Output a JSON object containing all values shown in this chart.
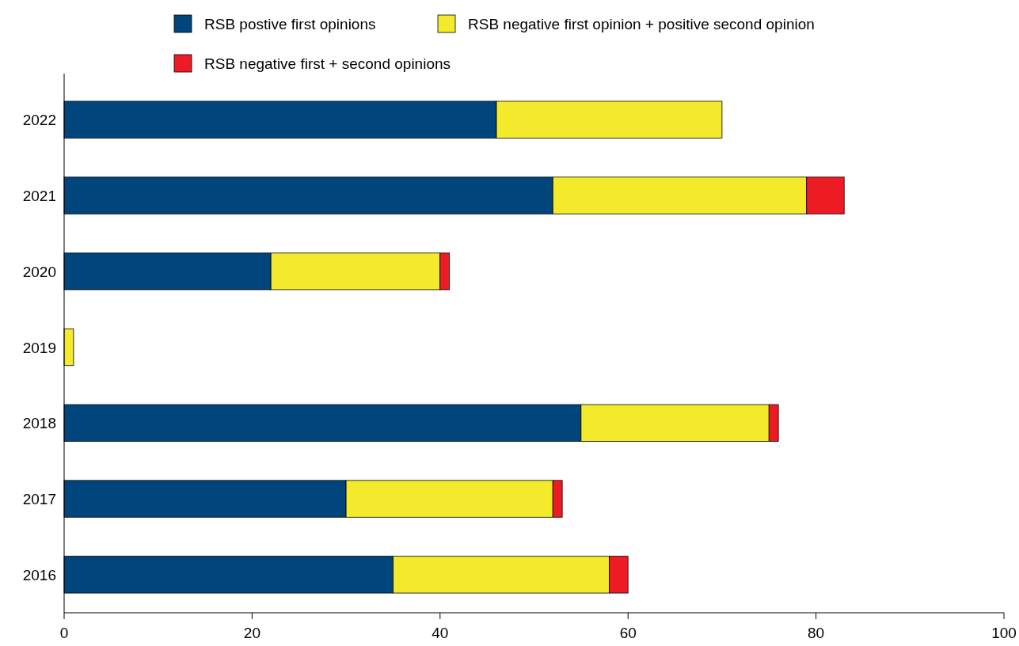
{
  "chart_data": {
    "type": "bar",
    "orientation": "horizontal",
    "stacked": true,
    "legend": "top",
    "categories": [
      "2022",
      "2021",
      "2020",
      "2019",
      "2018",
      "2017",
      "2016"
    ],
    "series": [
      {
        "name": "RSB postive first opinions",
        "color": "#00457c",
        "values": [
          46,
          52,
          22,
          0,
          55,
          30,
          35
        ]
      },
      {
        "name": "RSB negative first opinion + positive second opinion",
        "color": "#f2ea2a",
        "values": [
          24,
          27,
          18,
          1,
          20,
          22,
          23
        ]
      },
      {
        "name": "RSB negative first + second opinions",
        "color": "#ed1c24",
        "values": [
          0,
          4,
          1,
          0,
          1,
          1,
          2
        ]
      }
    ],
    "xlim": [
      0,
      100
    ],
    "xticks": [
      0,
      20,
      40,
      60,
      80,
      100
    ]
  }
}
